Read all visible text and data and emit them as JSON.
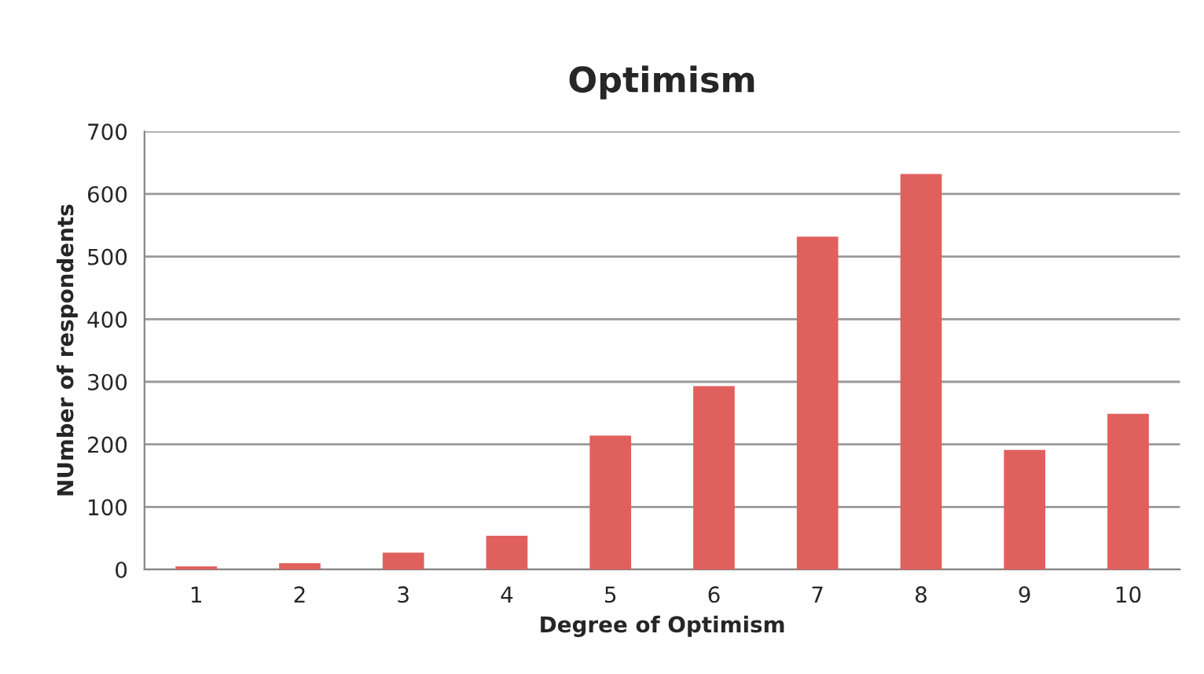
{
  "chart_data": {
    "type": "bar",
    "title": "Optimism",
    "xlabel": "Degree of Optimism",
    "ylabel": "NUmber of respondents",
    "categories": [
      "1",
      "2",
      "3",
      "4",
      "5",
      "6",
      "7",
      "8",
      "9",
      "10"
    ],
    "values": [
      5,
      10,
      27,
      54,
      214,
      293,
      532,
      632,
      191,
      249
    ],
    "color": "#e0605e",
    "ylim": [
      0,
      700
    ],
    "yticks": [
      0,
      100,
      200,
      300,
      400,
      500,
      600,
      700
    ],
    "grid": "y",
    "legend": false
  }
}
